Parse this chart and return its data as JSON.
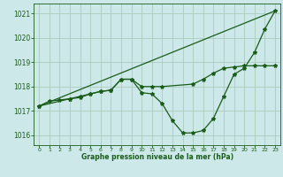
{
  "bg_color": "#cce8e8",
  "grid_color": "#aaccbb",
  "line_color": "#1a5c1a",
  "xlabel": "Graphe pression niveau de la mer (hPa)",
  "xlim": [
    -0.5,
    23.5
  ],
  "ylim": [
    1015.6,
    1021.4
  ],
  "yticks": [
    1016,
    1017,
    1018,
    1019,
    1020,
    1021
  ],
  "xticks": [
    0,
    1,
    2,
    3,
    4,
    5,
    6,
    7,
    8,
    9,
    10,
    11,
    12,
    13,
    14,
    15,
    16,
    17,
    18,
    19,
    20,
    21,
    22,
    23
  ],
  "line1_x": [
    0,
    1,
    2,
    3,
    4,
    5,
    6,
    7,
    8,
    9,
    10,
    11,
    12,
    13,
    14,
    15,
    16,
    17,
    18,
    19,
    20,
    21,
    22,
    23
  ],
  "line1_y": [
    1017.2,
    1017.4,
    1017.45,
    1017.5,
    1017.55,
    1017.7,
    1017.8,
    1017.85,
    1018.3,
    1018.3,
    1017.75,
    1017.7,
    1017.3,
    1016.6,
    1016.1,
    1016.1,
    1016.2,
    1016.7,
    1017.6,
    1018.5,
    1018.75,
    1019.4,
    1020.35,
    1021.1
  ],
  "line2_x": [
    0,
    3,
    4,
    5,
    6,
    7,
    8,
    9,
    10,
    11,
    12,
    15,
    16,
    17,
    18,
    19,
    20,
    21,
    22,
    23
  ],
  "line2_y": [
    1017.2,
    1017.5,
    1017.6,
    1017.7,
    1017.8,
    1017.85,
    1018.3,
    1018.3,
    1018.0,
    1018.0,
    1018.0,
    1018.1,
    1018.3,
    1018.55,
    1018.75,
    1018.8,
    1018.85,
    1018.85,
    1018.85,
    1018.85
  ],
  "line3_x": [
    0,
    23
  ],
  "line3_y": [
    1017.2,
    1021.1
  ],
  "figsize": [
    3.2,
    2.0
  ],
  "dpi": 100
}
